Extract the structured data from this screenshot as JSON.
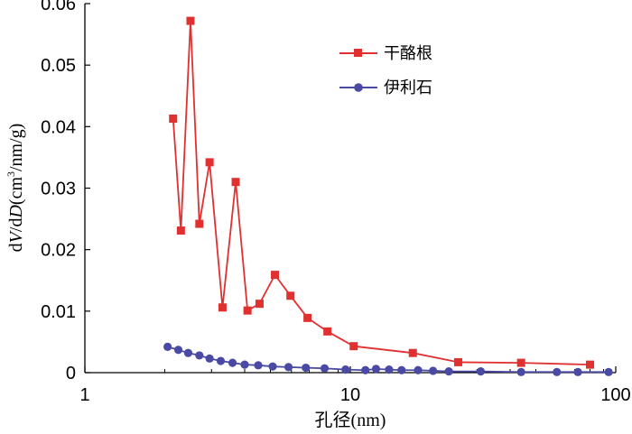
{
  "chart_data": {
    "type": "line",
    "title": "",
    "xlabel": "孔径(nm)",
    "ylabel_parts": {
      "a": "d",
      "b": "V",
      "c": "/d",
      "d": "D",
      "e": "(cm",
      "f": "3",
      "g": "/nm/g)"
    },
    "x_scale": "log",
    "xlim": [
      1,
      100
    ],
    "ylim": [
      0,
      0.06
    ],
    "x_ticks": [
      1,
      10,
      100
    ],
    "x_tick_labels": [
      "1",
      "10",
      "100"
    ],
    "y_ticks": [
      0,
      0.01,
      0.02,
      0.03,
      0.04,
      0.05,
      0.06
    ],
    "y_tick_labels": [
      "0",
      "0.01",
      "0.02",
      "0.03",
      "0.04",
      "0.05",
      "0.06"
    ],
    "grid": false,
    "legend_position": "top-right",
    "series": [
      {
        "name": "干酪根",
        "color": "#e03030",
        "marker": "square",
        "x": [
          2.15,
          2.3,
          2.5,
          2.7,
          2.95,
          3.3,
          3.7,
          4.1,
          4.55,
          5.2,
          5.95,
          6.9,
          8.2,
          10.3,
          17.2,
          25.5,
          44.0,
          80.0
        ],
        "y": [
          0.0413,
          0.0231,
          0.0572,
          0.0242,
          0.0342,
          0.0106,
          0.031,
          0.0101,
          0.0112,
          0.0159,
          0.0125,
          0.0089,
          0.0067,
          0.0043,
          0.0032,
          0.0017,
          0.0016,
          0.0013
        ]
      },
      {
        "name": "伊利石",
        "color": "#4a4aa5",
        "marker": "circle",
        "x": [
          2.05,
          2.25,
          2.45,
          2.7,
          2.95,
          3.25,
          3.6,
          4.0,
          4.5,
          5.1,
          5.85,
          6.8,
          8.0,
          9.6,
          11.4,
          12.5,
          14.0,
          15.6,
          18.0,
          20.5,
          23.5,
          31.0,
          44.0,
          60.0,
          72.0,
          94.0
        ],
        "y": [
          0.0042,
          0.0037,
          0.0032,
          0.0028,
          0.0023,
          0.0019,
          0.0016,
          0.0013,
          0.0012,
          0.001,
          0.0009,
          0.0008,
          0.0007,
          0.0005,
          0.0004,
          0.0006,
          0.0005,
          0.0004,
          0.0004,
          0.0003,
          0.0002,
          0.0002,
          0.0001,
          0.0001,
          0.0001,
          0.0001
        ]
      }
    ]
  }
}
